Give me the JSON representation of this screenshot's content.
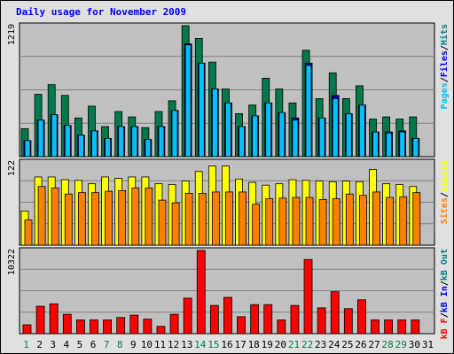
{
  "title": "Daily usage for November 2009",
  "colors": {
    "frame_bg": "#e0e0e0",
    "panel_bg": "#c0c0c0",
    "grid": "#808080",
    "title": "#0000ff",
    "hits": "#007a4a",
    "files": "#00bfff",
    "pages": "#00bfff",
    "visits": "#ffff00",
    "sites": "#ff8000",
    "kbytes": "#ff0000",
    "weekend_label": "#008040",
    "weekday_label": "#000000"
  },
  "chart_data": [
    {
      "type": "bar",
      "panel": "hits-files-pages",
      "ymax_label": "1219",
      "ylim": [
        0,
        1219
      ],
      "axis_legend": [
        {
          "text": "Pages",
          "color": "#00bfff"
        },
        {
          "text": "/",
          "color": "#000000"
        },
        {
          "text": "Files",
          "color": "#0000ff"
        },
        {
          "text": "/",
          "color": "#000000"
        },
        {
          "text": "Hits",
          "color": "#008080"
        }
      ],
      "categories": [
        "1",
        "2",
        "3",
        "4",
        "5",
        "6",
        "7",
        "8",
        "9",
        "10",
        "11",
        "12",
        "13",
        "14",
        "15",
        "16",
        "17",
        "18",
        "19",
        "20",
        "21",
        "22",
        "23",
        "24",
        "25",
        "26",
        "27",
        "28",
        "29",
        "30",
        "31"
      ],
      "series": [
        {
          "name": "Hits",
          "color": "#007a4a",
          "values": [
            260,
            580,
            670,
            570,
            360,
            470,
            280,
            420,
            370,
            270,
            420,
            520,
            1219,
            1100,
            880,
            630,
            400,
            480,
            730,
            630,
            500,
            990,
            540,
            780,
            540,
            660,
            350,
            370,
            350,
            370,
            0
          ]
        },
        {
          "name": "Files",
          "color": "#0000a0",
          "values": [
            150,
            340,
            390,
            290,
            200,
            240,
            170,
            280,
            280,
            160,
            280,
            430,
            1050,
            870,
            630,
            500,
            280,
            380,
            500,
            410,
            360,
            870,
            360,
            570,
            400,
            480,
            230,
            230,
            240,
            170,
            0
          ]
        },
        {
          "name": "Pages",
          "color": "#00bfff",
          "values": [
            150,
            340,
            390,
            290,
            200,
            240,
            170,
            280,
            280,
            160,
            280,
            430,
            1040,
            870,
            630,
            500,
            280,
            380,
            500,
            410,
            340,
            850,
            360,
            540,
            400,
            480,
            230,
            220,
            230,
            170,
            0
          ]
        }
      ]
    },
    {
      "type": "bar",
      "panel": "visits-sites",
      "ymax_label": "122",
      "ylim": [
        0,
        122
      ],
      "axis_legend": [
        {
          "text": "Sites",
          "color": "#ff8000"
        },
        {
          "text": "/",
          "color": "#000000"
        },
        {
          "text": "Visits",
          "color": "#ffff00"
        }
      ],
      "categories": [
        "1",
        "2",
        "3",
        "4",
        "5",
        "6",
        "7",
        "8",
        "9",
        "10",
        "11",
        "12",
        "13",
        "14",
        "15",
        "16",
        "17",
        "18",
        "19",
        "20",
        "21",
        "22",
        "23",
        "24",
        "25",
        "26",
        "27",
        "28",
        "29",
        "30",
        "31"
      ],
      "series": [
        {
          "name": "Visits",
          "color": "#ffff00",
          "values": [
            50,
            100,
            100,
            96,
            95,
            90,
            100,
            98,
            100,
            100,
            90,
            89,
            94,
            108,
            116,
            116,
            97,
            92,
            88,
            90,
            96,
            95,
            94,
            93,
            94,
            93,
            111,
            90,
            89,
            86,
            0
          ]
        },
        {
          "name": "Sites",
          "color": "#ff8000",
          "values": [
            37,
            86,
            84,
            75,
            77,
            77,
            79,
            80,
            84,
            84,
            66,
            62,
            76,
            76,
            78,
            78,
            78,
            60,
            68,
            69,
            70,
            70,
            67,
            68,
            75,
            73,
            78,
            70,
            71,
            77,
            0
          ]
        }
      ]
    },
    {
      "type": "bar",
      "panel": "kbytes",
      "ymax_label": "10322",
      "ylim": [
        0,
        10322
      ],
      "axis_legend": [
        {
          "text": "kB F",
          "color": "#ff0000"
        },
        {
          "text": "/",
          "color": "#000000"
        },
        {
          "text": "kB In",
          "color": "#0000ff"
        },
        {
          "text": "/",
          "color": "#000000"
        },
        {
          "text": "kB Out",
          "color": "#008080"
        }
      ],
      "categories": [
        "1",
        "2",
        "3",
        "4",
        "5",
        "6",
        "7",
        "8",
        "9",
        "10",
        "11",
        "12",
        "13",
        "14",
        "15",
        "16",
        "17",
        "18",
        "19",
        "20",
        "21",
        "22",
        "23",
        "24",
        "25",
        "26",
        "27",
        "28",
        "29",
        "30",
        "31"
      ],
      "series": [
        {
          "name": "kB F",
          "color": "#ff0000",
          "values": [
            1100,
            3400,
            3700,
            2400,
            1700,
            1700,
            1700,
            2000,
            2300,
            1800,
            900,
            2400,
            4400,
            10322,
            3500,
            4500,
            2100,
            3600,
            3600,
            1700,
            3500,
            9200,
            3200,
            5200,
            3100,
            4200,
            1700,
            1700,
            1700,
            1700,
            0
          ]
        }
      ]
    }
  ],
  "day_labels": [
    {
      "text": "1",
      "weekend": true
    },
    {
      "text": "2",
      "weekend": false
    },
    {
      "text": "3",
      "weekend": false
    },
    {
      "text": "4",
      "weekend": false
    },
    {
      "text": "5",
      "weekend": false
    },
    {
      "text": "6",
      "weekend": false
    },
    {
      "text": "7",
      "weekend": true
    },
    {
      "text": "8",
      "weekend": true
    },
    {
      "text": "9",
      "weekend": false
    },
    {
      "text": "10",
      "weekend": false
    },
    {
      "text": "11",
      "weekend": false
    },
    {
      "text": "12",
      "weekend": false
    },
    {
      "text": "13",
      "weekend": false
    },
    {
      "text": "14",
      "weekend": true
    },
    {
      "text": "15",
      "weekend": true
    },
    {
      "text": "16",
      "weekend": false
    },
    {
      "text": "17",
      "weekend": false
    },
    {
      "text": "18",
      "weekend": false
    },
    {
      "text": "19",
      "weekend": false
    },
    {
      "text": "20",
      "weekend": false
    },
    {
      "text": "21",
      "weekend": true
    },
    {
      "text": "22",
      "weekend": true
    },
    {
      "text": "23",
      "weekend": false
    },
    {
      "text": "24",
      "weekend": false
    },
    {
      "text": "25",
      "weekend": false
    },
    {
      "text": "26",
      "weekend": false
    },
    {
      "text": "27",
      "weekend": false
    },
    {
      "text": "28",
      "weekend": true
    },
    {
      "text": "29",
      "weekend": true
    },
    {
      "text": "30",
      "weekend": false
    },
    {
      "text": "31",
      "weekend": false
    }
  ]
}
